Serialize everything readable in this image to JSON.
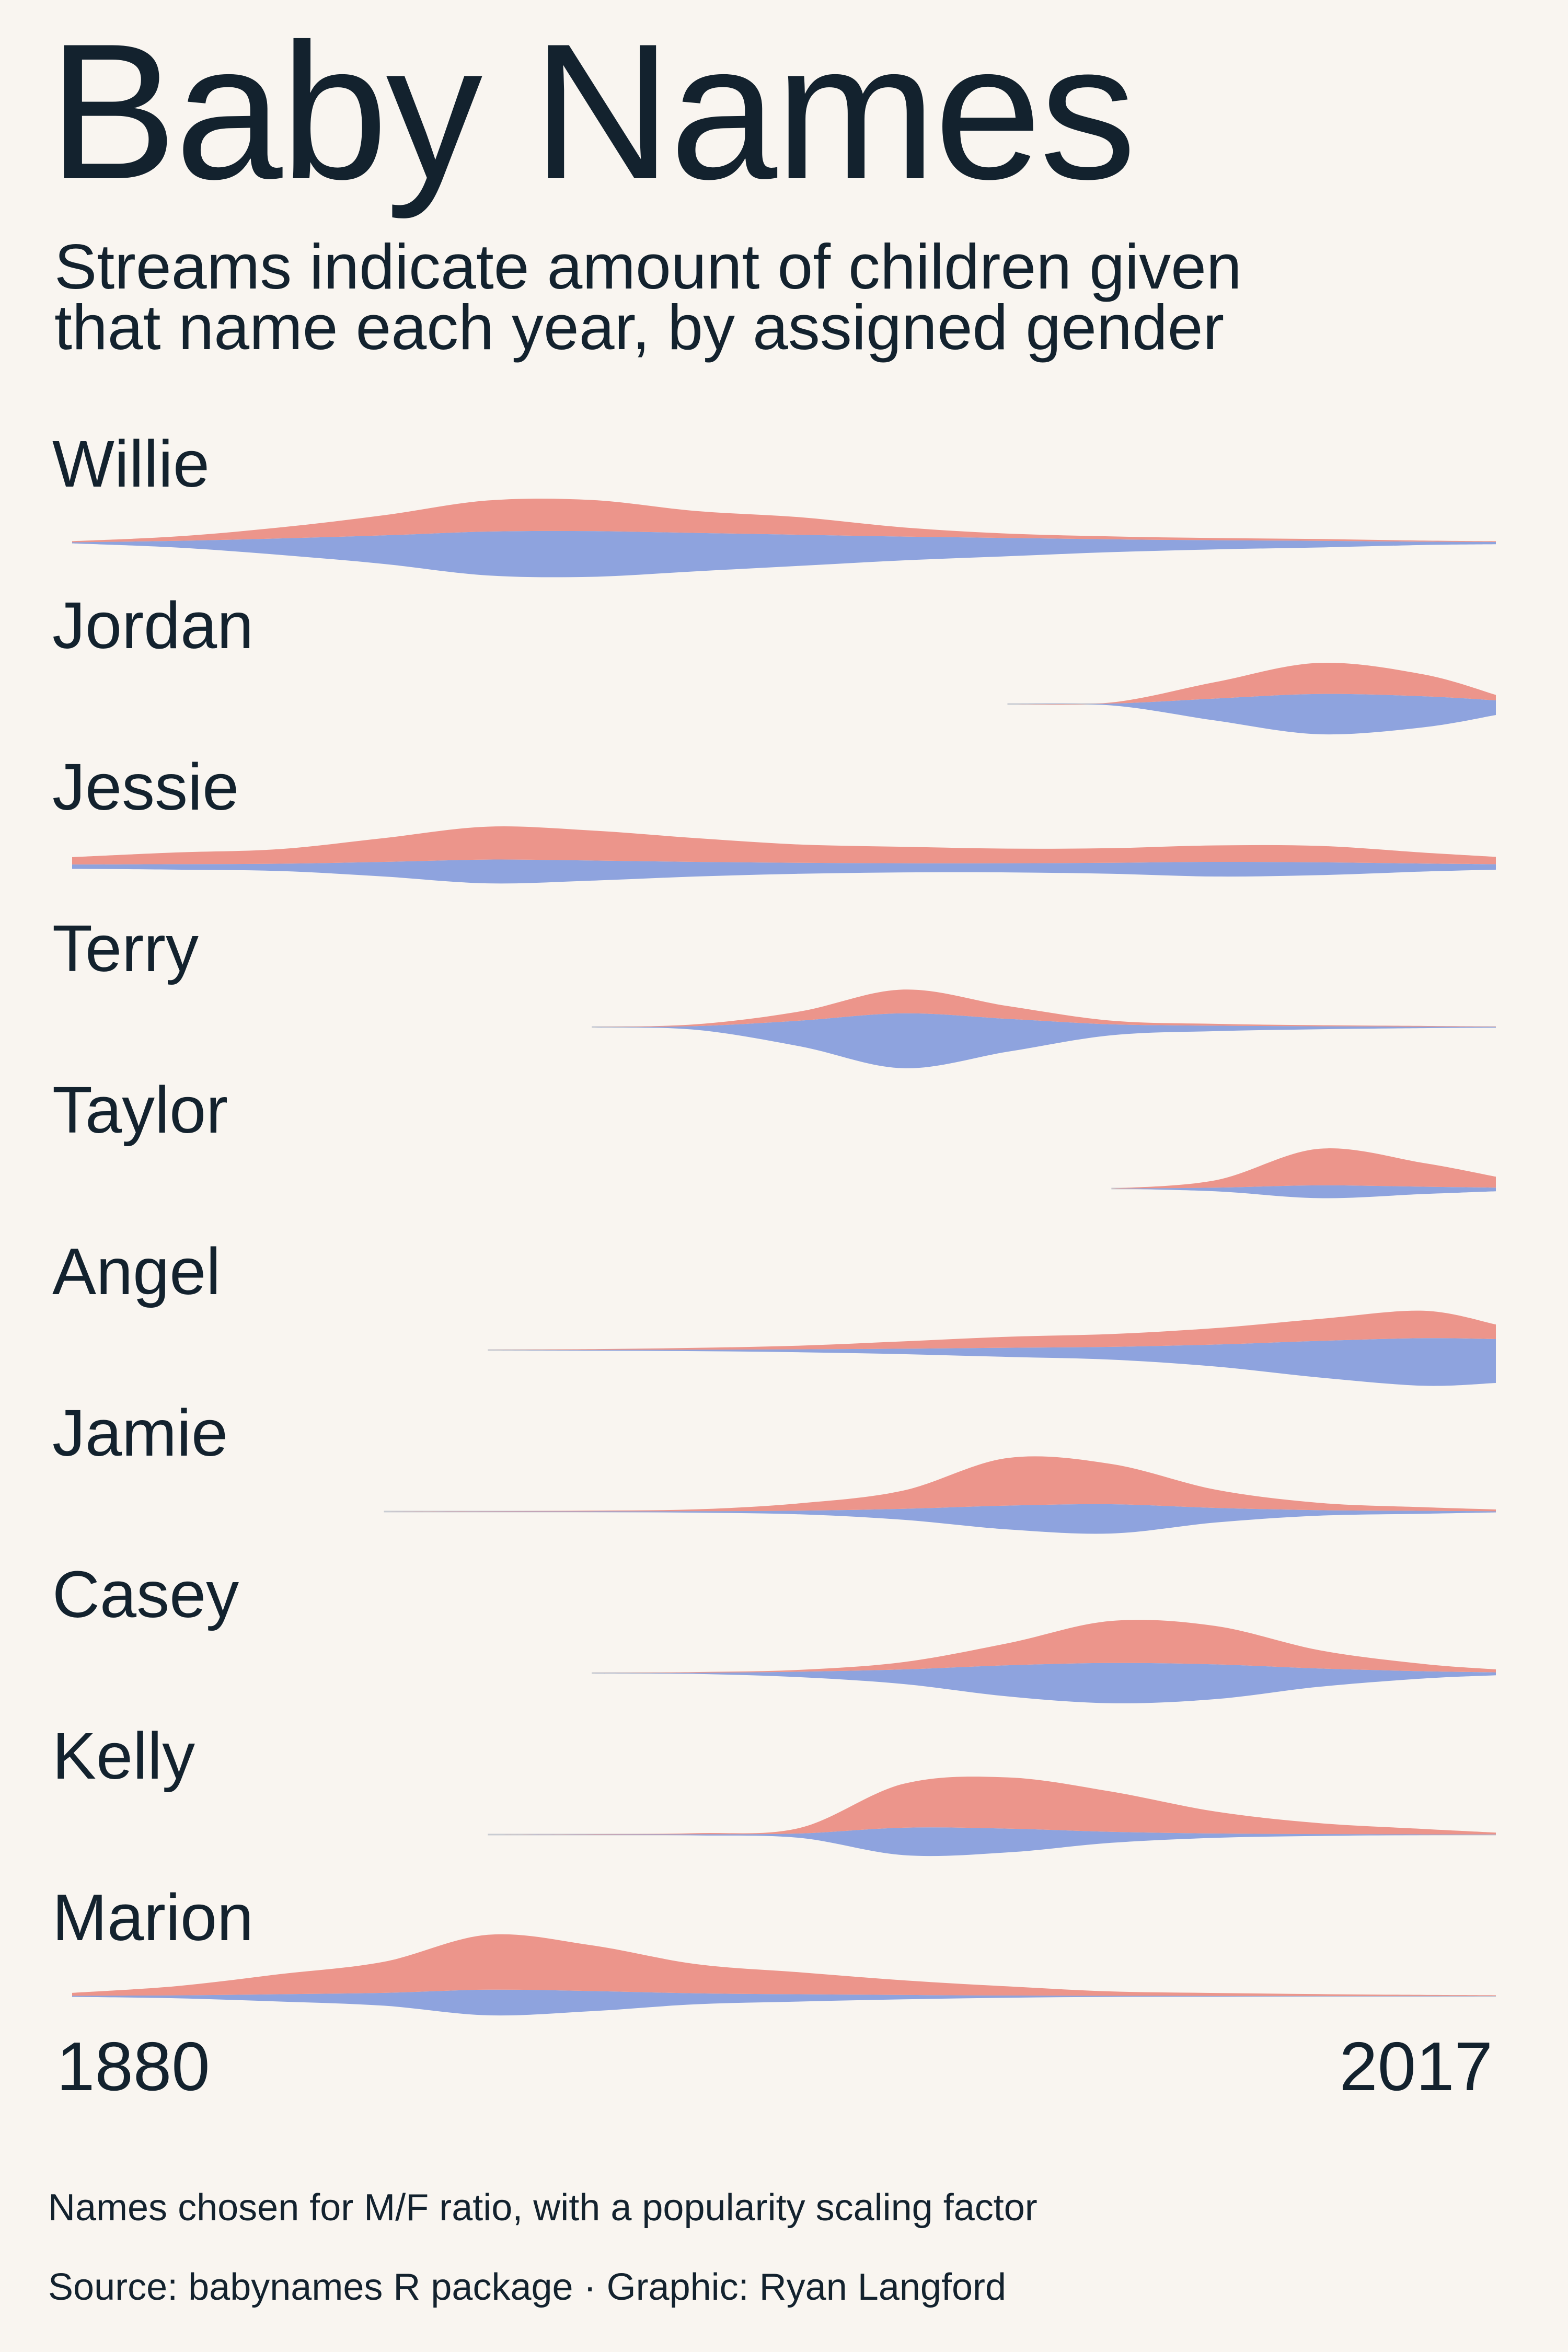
{
  "title": "Baby Names",
  "subtitle_line1": "Streams indicate amount of children given",
  "subtitle_line2": "that name each year, by assigned gender",
  "footnote": "Names chosen for M/F ratio, with a popularity scaling factor",
  "source": "Source: babynames R package · Graphic: Ryan Langford",
  "colors": {
    "female": "#ec958b",
    "male": "#8ea3de",
    "baseline": "#c9ccd2",
    "background": "#f9f5f0",
    "text": "#13222e"
  },
  "chart_data": {
    "type": "area",
    "layout": "stream",
    "xlim": [
      1880,
      2017
    ],
    "x_tick_labels": [
      "1880",
      "2017"
    ],
    "x": [
      1880,
      1890,
      1900,
      1910,
      1920,
      1930,
      1940,
      1950,
      1960,
      1970,
      1980,
      1990,
      2000,
      2010,
      2017
    ],
    "names": [
      {
        "name": "Willie",
        "female": [
          0.3,
          1.2,
          3.0,
          5.5,
          8.5,
          8.5,
          6.0,
          4.8,
          2.5,
          1.2,
          0.8,
          0.6,
          0.5,
          0.3,
          0.2
        ],
        "male": [
          0.3,
          1.8,
          4.5,
          7.8,
          12.0,
          12.5,
          10.5,
          8.5,
          6.5,
          5.0,
          3.5,
          2.5,
          1.8,
          0.9,
          0.6
        ]
      },
      {
        "name": "Jordan",
        "female": [
          0,
          0,
          0,
          0,
          0,
          0,
          0,
          0,
          0,
          0,
          0.3,
          4.5,
          8.5,
          6.0,
          1.5
        ],
        "male": [
          0,
          0,
          0,
          0,
          0,
          0,
          0,
          0,
          0,
          0,
          0.5,
          6.0,
          11.0,
          8.5,
          4.0
        ]
      },
      {
        "name": "Jessie",
        "female": [
          2.0,
          3.2,
          4.0,
          6.5,
          9.0,
          8.2,
          6.5,
          5.0,
          4.5,
          4.0,
          4.0,
          4.5,
          4.5,
          3.0,
          2.0
        ],
        "male": [
          1.2,
          1.5,
          2.0,
          4.0,
          6.5,
          5.5,
          4.0,
          3.0,
          2.5,
          2.5,
          3.0,
          4.0,
          3.5,
          2.2,
          1.5
        ]
      },
      {
        "name": "Terry",
        "female": [
          0,
          0,
          0,
          0,
          0,
          0,
          0.5,
          2.5,
          6.5,
          3.5,
          1.0,
          0.5,
          0.3,
          0.2,
          0.1
        ],
        "male": [
          0,
          0,
          0,
          0,
          0,
          0,
          1.0,
          7.0,
          15.0,
          9.0,
          3.0,
          1.5,
          0.8,
          0.4,
          0.2
        ]
      },
      {
        "name": "Taylor",
        "female": [
          0,
          0,
          0,
          0,
          0,
          0,
          0,
          0,
          0,
          0,
          0,
          2.0,
          10.0,
          6.5,
          3.0
        ],
        "male": [
          0,
          0,
          0,
          0,
          0,
          0,
          0,
          0,
          0,
          0,
          0,
          1.0,
          3.5,
          2.0,
          1.0
        ]
      },
      {
        "name": "Angel",
        "female": [
          0,
          0,
          0,
          0,
          0,
          0.2,
          0.5,
          1.0,
          2.0,
          3.0,
          3.5,
          4.5,
          6.0,
          7.5,
          4.0
        ],
        "male": [
          0,
          0,
          0,
          0,
          0,
          0.2,
          0.4,
          0.8,
          1.5,
          2.5,
          3.5,
          6.0,
          10.0,
          13.0,
          12.0
        ]
      },
      {
        "name": "Jamie",
        "female": [
          0,
          0,
          0,
          0,
          0.1,
          0.2,
          0.5,
          2.0,
          5.0,
          13.0,
          11.0,
          5.0,
          2.0,
          1.0,
          0.5
        ],
        "male": [
          0,
          0,
          0,
          0,
          0.1,
          0.2,
          0.4,
          1.0,
          3.0,
          6.5,
          8.0,
          4.0,
          1.5,
          0.8,
          0.3
        ]
      },
      {
        "name": "Casey",
        "female": [
          0,
          0,
          0,
          0,
          0,
          0,
          0.2,
          0.5,
          2.0,
          6.0,
          11.5,
          10.5,
          5.0,
          2.0,
          0.8
        ],
        "male": [
          0,
          0,
          0,
          0,
          0,
          0,
          0.3,
          1.5,
          4.0,
          8.5,
          11.0,
          9.5,
          5.0,
          2.0,
          0.8
        ]
      },
      {
        "name": "Kelly",
        "female": [
          0,
          0,
          0,
          0,
          0,
          0.1,
          0.3,
          1.5,
          12.0,
          14.0,
          11.0,
          6.0,
          3.0,
          1.5,
          0.5
        ],
        "male": [
          0,
          0,
          0,
          0,
          0,
          0.1,
          0.3,
          1.2,
          7.5,
          6.5,
          3.0,
          1.2,
          0.5,
          0.2,
          0.1
        ]
      },
      {
        "name": "Marion",
        "female": [
          0.8,
          2.5,
          5.5,
          8.5,
          15.0,
          12.5,
          8.0,
          6.0,
          4.0,
          2.5,
          1.2,
          0.8,
          0.5,
          0.3,
          0.2
        ],
        "male": [
          0.3,
          0.8,
          2.0,
          3.5,
          7.0,
          5.5,
          3.0,
          2.0,
          1.2,
          0.6,
          0.3,
          0.2,
          0.1,
          0.1,
          0.05
        ]
      }
    ]
  }
}
